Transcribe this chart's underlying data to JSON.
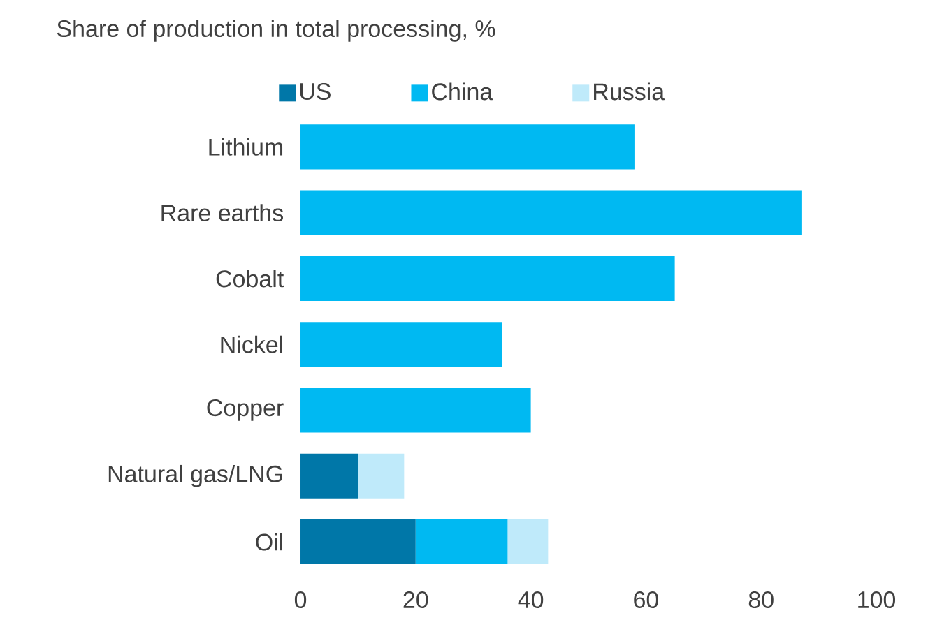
{
  "chart_data": {
    "type": "bar",
    "orientation": "horizontal",
    "stacked": true,
    "title": "Share of production in total processing, %",
    "categories": [
      "Lithium",
      "Rare earths",
      "Cobalt",
      "Nickel",
      "Copper",
      "Natural gas/LNG",
      "Oil"
    ],
    "series": [
      {
        "name": "US",
        "color": "#0077a8",
        "values": [
          null,
          null,
          null,
          null,
          null,
          10,
          20
        ]
      },
      {
        "name": "China",
        "color": "#00b9f2",
        "values": [
          58,
          87,
          65,
          35,
          40,
          null,
          16
        ]
      },
      {
        "name": "Russia",
        "color": "#bfeafa",
        "values": [
          null,
          null,
          null,
          null,
          null,
          8,
          7
        ]
      }
    ],
    "xlim": [
      0,
      100
    ],
    "xticks": [
      0,
      20,
      40,
      60,
      80,
      100
    ],
    "legend": "top",
    "grid": false
  }
}
